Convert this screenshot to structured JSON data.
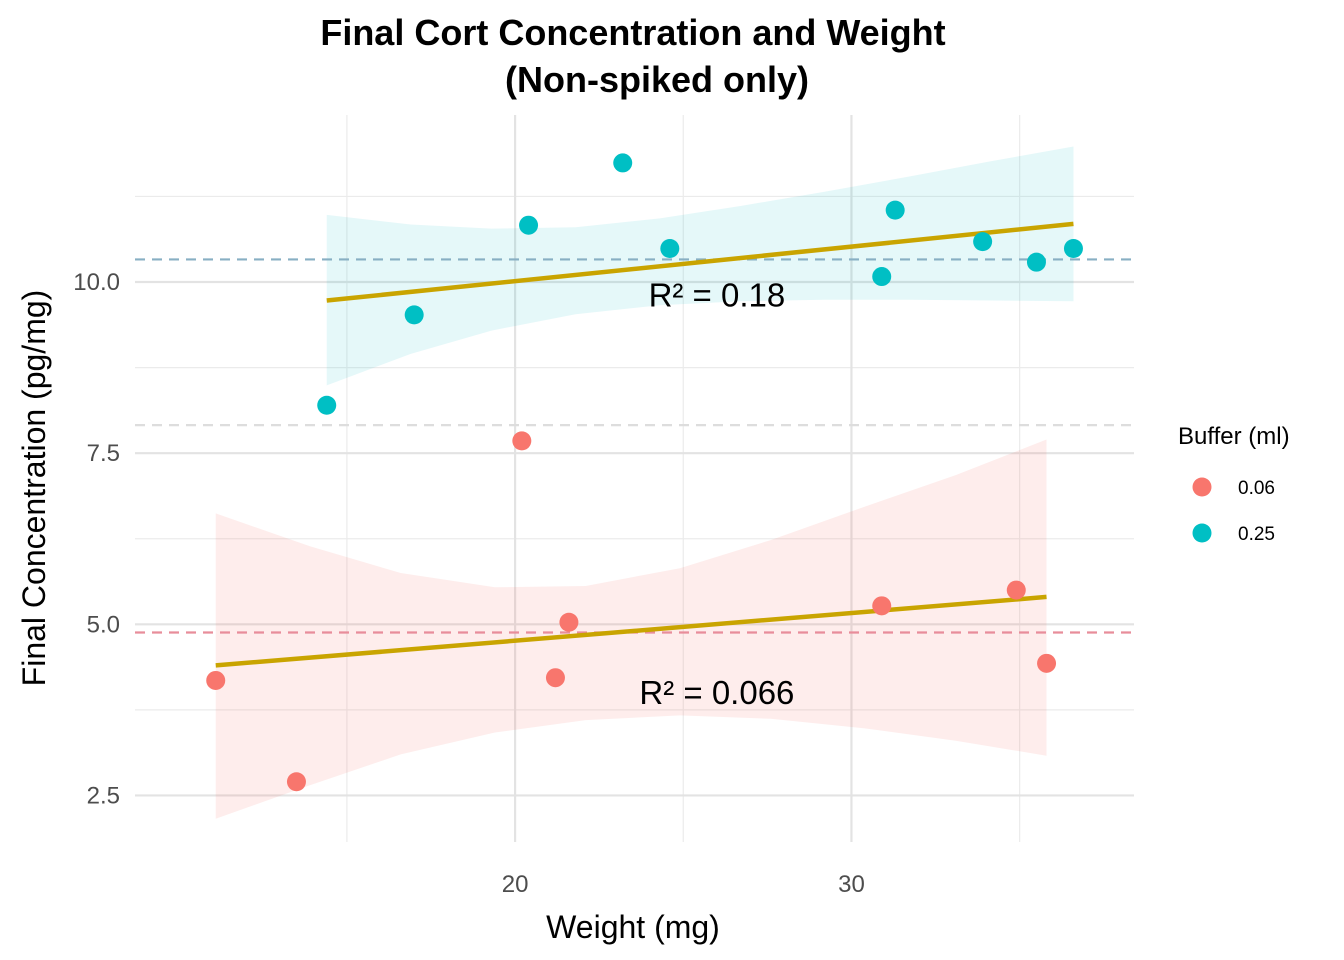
{
  "chart_data": {
    "type": "scatter",
    "title": "Final Cort Concentration and Weight",
    "subtitle": "(Non-spiked only)",
    "xlabel": "Weight (mg)",
    "ylabel": "Final Concentration (pg/mg)",
    "xlim": [
      8.7,
      38.4
    ],
    "ylim": [
      1.82,
      12.44
    ],
    "x_ticks": [
      20,
      30
    ],
    "x_tick_labels": [
      "20",
      "30"
    ],
    "x_minor_grid": [
      15,
      25,
      35
    ],
    "y_ticks": [
      2.5,
      5.0,
      7.5,
      10.0
    ],
    "y_tick_labels": [
      "2.5",
      "5.0",
      "7.5",
      "10.0"
    ],
    "y_minor_grid": [
      3.75,
      6.25,
      8.75,
      11.25
    ],
    "grid": true,
    "legend": {
      "title": "Buffer (ml)",
      "placement": "right",
      "entries": [
        "0.06",
        "0.25"
      ]
    },
    "series": [
      {
        "name": "0.06",
        "color": "#F8766D",
        "points": [
          {
            "x": 11.1,
            "y": 4.18
          },
          {
            "x": 13.5,
            "y": 2.7
          },
          {
            "x": 20.2,
            "y": 7.68
          },
          {
            "x": 21.2,
            "y": 4.22
          },
          {
            "x": 21.6,
            "y": 5.03
          },
          {
            "x": 30.9,
            "y": 5.27
          },
          {
            "x": 34.9,
            "y": 5.5
          },
          {
            "x": 35.8,
            "y": 4.43
          }
        ],
        "fit": {
          "x": [
            11.1,
            35.8
          ],
          "y": [
            4.4,
            5.4
          ]
        },
        "ci": {
          "x": [
            11.1,
            13.9,
            16.6,
            19.4,
            22.1,
            24.9,
            27.6,
            30.4,
            33.1,
            35.8
          ],
          "upper": [
            6.62,
            6.14,
            5.75,
            5.54,
            5.56,
            5.82,
            6.23,
            6.72,
            7.18,
            7.7
          ],
          "lower": [
            2.16,
            2.65,
            3.1,
            3.42,
            3.6,
            3.67,
            3.62,
            3.48,
            3.3,
            3.08
          ]
        },
        "mean_line": 4.88,
        "mean_line_color": "#E88D9A",
        "annotation": {
          "text": "R² = 0.066",
          "x": 26.0,
          "y": 4.0
        }
      },
      {
        "name": "0.25",
        "color": "#00BFC4",
        "points": [
          {
            "x": 14.4,
            "y": 8.2
          },
          {
            "x": 17.0,
            "y": 9.52
          },
          {
            "x": 20.4,
            "y": 10.83
          },
          {
            "x": 23.2,
            "y": 11.74
          },
          {
            "x": 24.6,
            "y": 10.49
          },
          {
            "x": 30.9,
            "y": 10.08
          },
          {
            "x": 31.3,
            "y": 11.05
          },
          {
            "x": 33.9,
            "y": 10.59
          },
          {
            "x": 35.5,
            "y": 10.29
          },
          {
            "x": 36.6,
            "y": 10.49
          }
        ],
        "fit": {
          "x": [
            14.4,
            36.6
          ],
          "y": [
            9.73,
            10.85
          ]
        },
        "ci": {
          "x": [
            14.4,
            16.9,
            19.3,
            21.8,
            24.3,
            26.7,
            29.2,
            31.7,
            34.1,
            36.6
          ],
          "upper": [
            10.98,
            10.84,
            10.78,
            10.8,
            10.93,
            11.11,
            11.32,
            11.54,
            11.76,
            11.98
          ],
          "lower": [
            8.49,
            8.95,
            9.29,
            9.53,
            9.66,
            9.72,
            9.74,
            9.74,
            9.73,
            9.72
          ]
        },
        "mean_line": 10.33,
        "mean_line_color": "#88AFC3",
        "annotation": {
          "text": "R² = 0.18",
          "x": 26.0,
          "y": 9.8
        }
      }
    ],
    "fit_line_color": "#C9A400",
    "overall_mean_line": 7.91,
    "overall_mean_line_color": "#DDDDDD"
  }
}
